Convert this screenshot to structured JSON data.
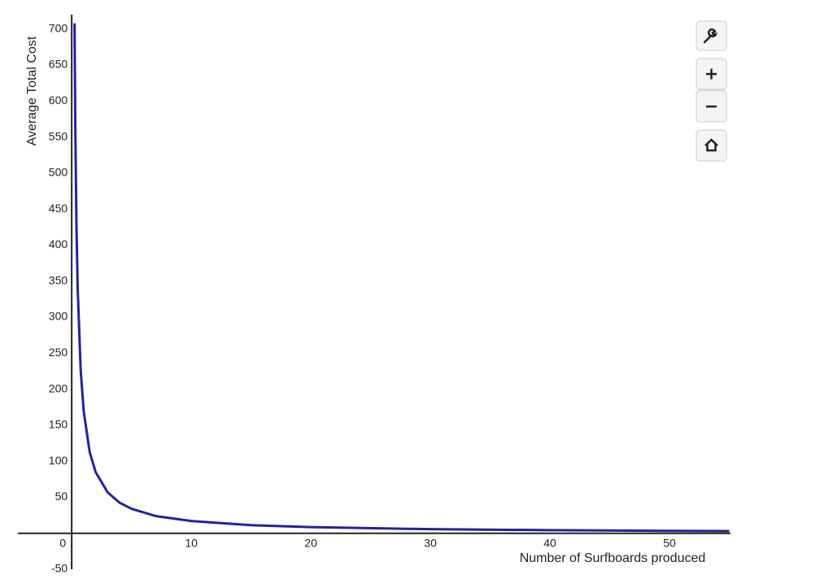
{
  "chart_data": {
    "type": "line",
    "xlabel": "Number of Surfboards produced",
    "ylabel": "Average Total Cost",
    "x": [
      0.24,
      0.3,
      0.4,
      0.5,
      0.75,
      1,
      1.5,
      2,
      3,
      4,
      5,
      7,
      10,
      15,
      20,
      30,
      40,
      50,
      55
    ],
    "series": [
      {
        "color": "#23239a",
        "values": [
          708,
          567,
          425,
          340,
          227,
          170,
          113,
          85,
          57,
          42.5,
          34,
          24,
          17,
          11.3,
          8.5,
          5.7,
          4.3,
          3.4,
          3.1
        ]
      }
    ],
    "xlim": [
      -4.5,
      55.1
    ],
    "ylim": [
      -50,
      720
    ],
    "xticks": [
      0,
      10,
      20,
      30,
      40,
      50
    ],
    "yticks": [
      -50,
      50,
      100,
      150,
      200,
      250,
      300,
      350,
      400,
      450,
      500,
      550,
      600,
      650,
      700
    ],
    "grid": true,
    "minor_grid": true
  }
}
